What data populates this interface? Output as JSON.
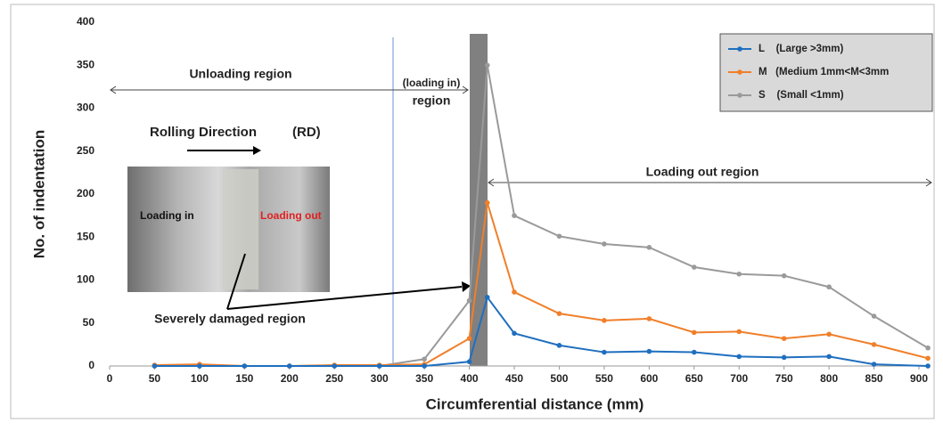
{
  "chart_data": {
    "type": "line",
    "xlabel": "Circumferential distance  (mm)",
    "ylabel": "No. of indentation",
    "x": [
      50,
      100,
      150,
      200,
      250,
      300,
      350,
      400,
      420,
      450,
      500,
      550,
      600,
      650,
      700,
      750,
      800,
      850,
      910
    ],
    "series": [
      {
        "name": "L    (Large >3mm)",
        "color": "#1f6fbf",
        "values": [
          0,
          0,
          0,
          0,
          0,
          0,
          0,
          5,
          80,
          38,
          24,
          16,
          17,
          16,
          11,
          10,
          11,
          2,
          0
        ]
      },
      {
        "name": "M   (Medium 1mm<M<3mm",
        "color": "#f07f2a",
        "values": [
          1,
          2,
          0,
          0,
          1,
          1,
          2,
          32,
          190,
          86,
          61,
          53,
          55,
          39,
          40,
          32,
          37,
          25,
          9
        ]
      },
      {
        "name": "S    (Small <1mm)",
        "color": "#9a9a9a",
        "values": [
          0,
          0,
          0,
          0,
          0,
          0,
          8,
          76,
          350,
          175,
          151,
          142,
          138,
          115,
          107,
          105,
          92,
          58,
          21
        ]
      }
    ],
    "xlim": [
      0,
      910
    ],
    "ylim": [
      0,
      400
    ],
    "xticks": [
      0,
      50,
      100,
      150,
      200,
      250,
      300,
      350,
      400,
      450,
      500,
      550,
      600,
      650,
      700,
      750,
      800,
      850,
      900
    ],
    "yticks": [
      0,
      50,
      100,
      150,
      200,
      250,
      300,
      350,
      400
    ],
    "grid": false,
    "annotations": {
      "unloading": "Unloading region",
      "loading_in": "(loading in)",
      "region": "region",
      "rolling": "Rolling Direction",
      "rd": "(RD)",
      "loading_out_region": "Loading out region",
      "photo_in": "Loading in",
      "photo_out": "Loading out",
      "damaged": "Severely damaged region"
    }
  }
}
